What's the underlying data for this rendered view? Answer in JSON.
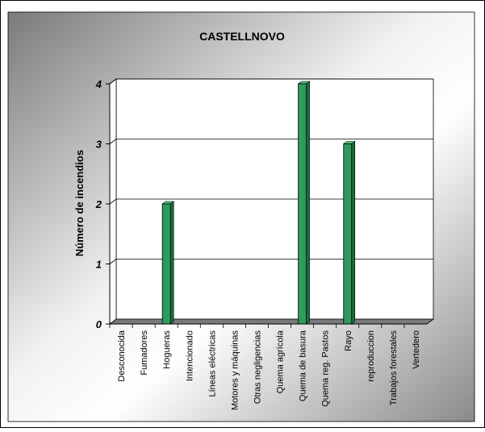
{
  "chart_data": {
    "type": "bar",
    "title": "CASTELLNOVO",
    "ylabel": "Número de incendios",
    "xlabel": "",
    "categories": [
      "Desconocida",
      "Fumadores",
      "Hogueras",
      "Intencionado",
      "Líneas eléctricas",
      "Motores y máquinas",
      "Otras negligencias",
      "Quema agrícola",
      "Quema de basura",
      "Quema reg. Pastos",
      "Rayo",
      "reproduccion",
      "Trabajos forestales",
      "Vertedero"
    ],
    "values": [
      0,
      0,
      2,
      0,
      0,
      0,
      0,
      0,
      4,
      0,
      3,
      0,
      0,
      0
    ],
    "ylim": [
      0,
      4
    ],
    "yticks": [
      0,
      1,
      2,
      3,
      4
    ],
    "grid": true,
    "legend": "none",
    "colors": {
      "bar_front": "#2e9a5c",
      "bar_side": "#1b6e3e",
      "bar_top": "#4fc27e",
      "floor": "#7a7a7a",
      "frame_light": "#ffffff",
      "frame_dark": "#777777",
      "plot_bg": "#ffffff",
      "grid": "#000000"
    }
  }
}
